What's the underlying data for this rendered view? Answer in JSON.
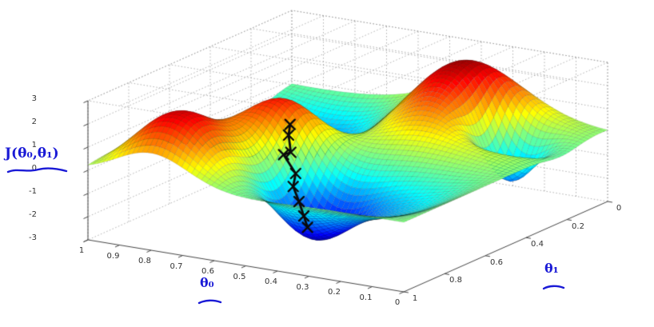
{
  "figure": {
    "background_color": "#ffffff"
  },
  "annotations": {
    "cost_label": "J(θ₀,θ₁)",
    "theta0_label": "θ₀",
    "theta1_label": "θ₁",
    "annotation_color": "#1a1ad6"
  },
  "chart_data": {
    "type": "surface3d",
    "colormap": "jet",
    "view": {
      "azimuth_deg": -37.5,
      "elevation_deg": 30
    },
    "grid": "dotted",
    "x_axis": {
      "label": "θ₀",
      "range": [
        0,
        1
      ],
      "ticks": [
        "1",
        "0.9",
        "0.8",
        "0.7",
        "0.6",
        "0.5",
        "0.4",
        "0.3",
        "0.2",
        "0.1",
        "0"
      ]
    },
    "y_axis": {
      "label": "θ₁",
      "range": [
        0,
        1
      ],
      "ticks": [
        "0",
        "0.2",
        "0.4",
        "0.6",
        "0.8",
        "1"
      ]
    },
    "z_axis": {
      "label": "J(θ₀,θ₁)",
      "range": [
        -3,
        3
      ],
      "ticks": [
        "3",
        "2",
        "1",
        "0",
        "-1",
        "-2",
        "-3"
      ]
    },
    "surface": {
      "grid_n": 64,
      "base_amplitude": 1.1,
      "bumps": [
        [
          0.67,
          0.54,
          0.1,
          2.2
        ],
        [
          0.36,
          0.13,
          0.15,
          2.3
        ],
        [
          0.8,
          0.9,
          0.11,
          1.8
        ],
        [
          0.48,
          0.72,
          0.11,
          -2.6
        ],
        [
          0.18,
          0.22,
          0.08,
          -3.4
        ],
        [
          0.92,
          0.35,
          0.18,
          -1.2
        ]
      ]
    },
    "descent_path": {
      "color": "#0a0a0a",
      "marker": "x",
      "points": [
        [
          0.615,
          0.605
        ],
        [
          0.608,
          0.623
        ],
        [
          0.59,
          0.64
        ],
        [
          0.6,
          0.66
        ],
        [
          0.565,
          0.655
        ],
        [
          0.558,
          0.678
        ],
        [
          0.535,
          0.685
        ],
        [
          0.512,
          0.697
        ],
        [
          0.49,
          0.713
        ]
      ]
    }
  }
}
